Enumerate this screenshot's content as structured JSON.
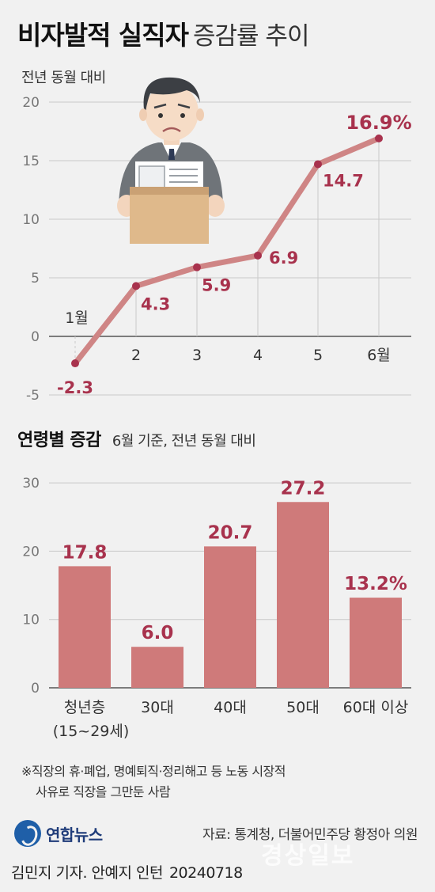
{
  "title_bold": "비자발적 실직자",
  "title_light": "증감률 추이",
  "subtitle": "전년 동월 대비",
  "section2_title": "연령별 증감",
  "section2_sub": "6월 기준, 전년 동월 대비",
  "footnote_line1": "※직장의 휴·폐업, 명예퇴직·정리해고 등 노동 시장적",
  "footnote_line2": "사유로 직장을 그만둔 사람",
  "logo_text": "연합뉴스",
  "source": "자료: 통계청, 더불어민주당 황정아 의원",
  "credit": "김민지 기자. 안예지 인턴",
  "date": "20240718",
  "watermark": "경상일보",
  "colors": {
    "line": "#cf8585",
    "point": "#a8324d",
    "label": "#a8324d",
    "bar": "#cf7a7a",
    "grid": "#c9c9c9"
  },
  "illustration": "worried-office-worker-holding-box-icon",
  "chart_data": [
    {
      "type": "line",
      "x": [
        "1월",
        "2",
        "3",
        "4",
        "5",
        "6월"
      ],
      "values": [
        -2.3,
        4.3,
        5.9,
        6.9,
        14.7,
        16.9
      ],
      "data_labels": [
        "-2.3",
        "4.3",
        "5.9",
        "6.9",
        "14.7",
        "16.9%"
      ],
      "yticks": [
        "-5",
        "0",
        "5",
        "10",
        "15",
        "20"
      ],
      "ylim": [
        -5,
        20
      ],
      "grid": "horizontal"
    },
    {
      "type": "bar",
      "categories": [
        "청년층",
        "30대",
        "40대",
        "50대",
        "60대 이상"
      ],
      "category_sub": [
        "(15~29세)",
        "",
        "",
        "",
        ""
      ],
      "values": [
        17.8,
        6.0,
        20.7,
        27.2,
        13.2
      ],
      "data_labels": [
        "17.8",
        "6.0",
        "20.7",
        "27.2",
        "13.2%"
      ],
      "yticks": [
        "0",
        "10",
        "20",
        "30"
      ],
      "ylim": [
        0,
        30
      ],
      "grid": "horizontal"
    }
  ]
}
